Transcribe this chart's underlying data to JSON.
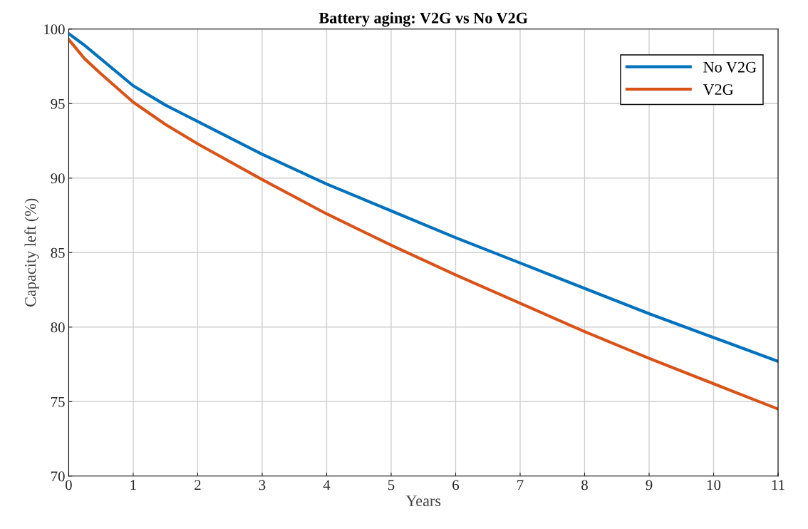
{
  "chart_data": {
    "type": "line",
    "title": "Battery aging: V2G vs No V2G",
    "xlabel": "Years",
    "ylabel": "Capacity left (%)",
    "x": [
      0,
      0.25,
      0.5,
      1,
      1.5,
      2,
      3,
      4,
      5,
      6,
      7,
      8,
      9,
      10,
      11
    ],
    "series": [
      {
        "name": "No V2G",
        "color": "#0072bd",
        "values": [
          99.7,
          98.9,
          98.0,
          96.2,
          94.9,
          93.8,
          91.6,
          89.6,
          87.8,
          86.0,
          84.3,
          82.6,
          80.9,
          79.3,
          77.7
        ]
      },
      {
        "name": "V2G",
        "color": "#d95319",
        "values": [
          99.3,
          98.0,
          97.0,
          95.1,
          93.6,
          92.3,
          89.9,
          87.6,
          85.5,
          83.5,
          81.6,
          79.7,
          77.9,
          76.2,
          74.5
        ]
      }
    ],
    "xlim": [
      0,
      11
    ],
    "xticks": [
      0,
      1,
      2,
      3,
      4,
      5,
      6,
      7,
      8,
      9,
      10,
      11
    ],
    "ylim": [
      70,
      100
    ],
    "yticks": [
      70,
      75,
      80,
      85,
      90,
      95,
      100
    ],
    "grid": true,
    "legend": "top right",
    "line_style": "solid",
    "marker": "none"
  }
}
